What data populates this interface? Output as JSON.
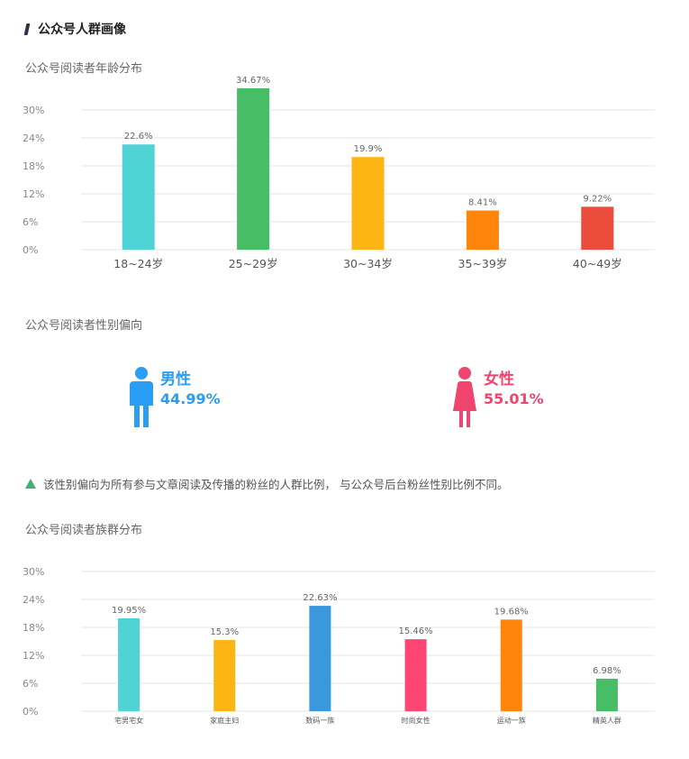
{
  "page": {
    "title": "公众号人群画像"
  },
  "colors": {
    "male": "#2a9df4",
    "female": "#f0456e",
    "grid": "#e4e4e4",
    "axis_text": "#888888",
    "note_marker": "#3cb371"
  },
  "gender": {
    "subtitle": "公众号阅读者性别偏向",
    "male": {
      "label": "男性",
      "value": "44.99%",
      "icon": "male-person-icon"
    },
    "female": {
      "label": "女性",
      "value": "55.01%",
      "icon": "female-person-icon"
    }
  },
  "note": {
    "icon": "green-triangle-icon",
    "text": "该性别偏向为所有参与文章阅读及传播的粉丝的人群比例， 与公众号后台粉丝性别比例不同。"
  },
  "chart_data": [
    {
      "id": "age",
      "type": "bar",
      "title": "公众号阅读者年龄分布",
      "categories": [
        "18~24岁",
        "25~29岁",
        "30~34岁",
        "35~39岁",
        "40~49岁"
      ],
      "values": [
        22.6,
        34.67,
        19.9,
        8.41,
        9.22
      ],
      "value_labels": [
        "22.6%",
        "34.67%",
        "19.9%",
        "8.41%",
        "9.22%"
      ],
      "colors": [
        "#4fd3d4",
        "#47be66",
        "#fdb515",
        "#ff850c",
        "#ec4c3c"
      ],
      "yticks": [
        "0%",
        "6%",
        "12%",
        "18%",
        "24%",
        "30%"
      ],
      "ylim": [
        0,
        30
      ],
      "grid": true
    },
    {
      "id": "group",
      "type": "bar",
      "title": "公众号阅读者族群分布",
      "categories": [
        "宅男宅女",
        "家庭主妇",
        "数码一族",
        "时尚女性",
        "运动一族",
        "精英人群"
      ],
      "values": [
        19.95,
        15.3,
        22.63,
        15.46,
        19.68,
        6.98
      ],
      "value_labels": [
        "19.95%",
        "15.3%",
        "22.63%",
        "15.46%",
        "19.68%",
        "6.98%"
      ],
      "colors": [
        "#4fd3d4",
        "#fdb515",
        "#3a98dc",
        "#fd4674",
        "#ff850c",
        "#47be66"
      ],
      "yticks": [
        "0%",
        "6%",
        "12%",
        "18%",
        "24%",
        "30%"
      ],
      "ylim": [
        0,
        30
      ],
      "grid": true
    }
  ]
}
